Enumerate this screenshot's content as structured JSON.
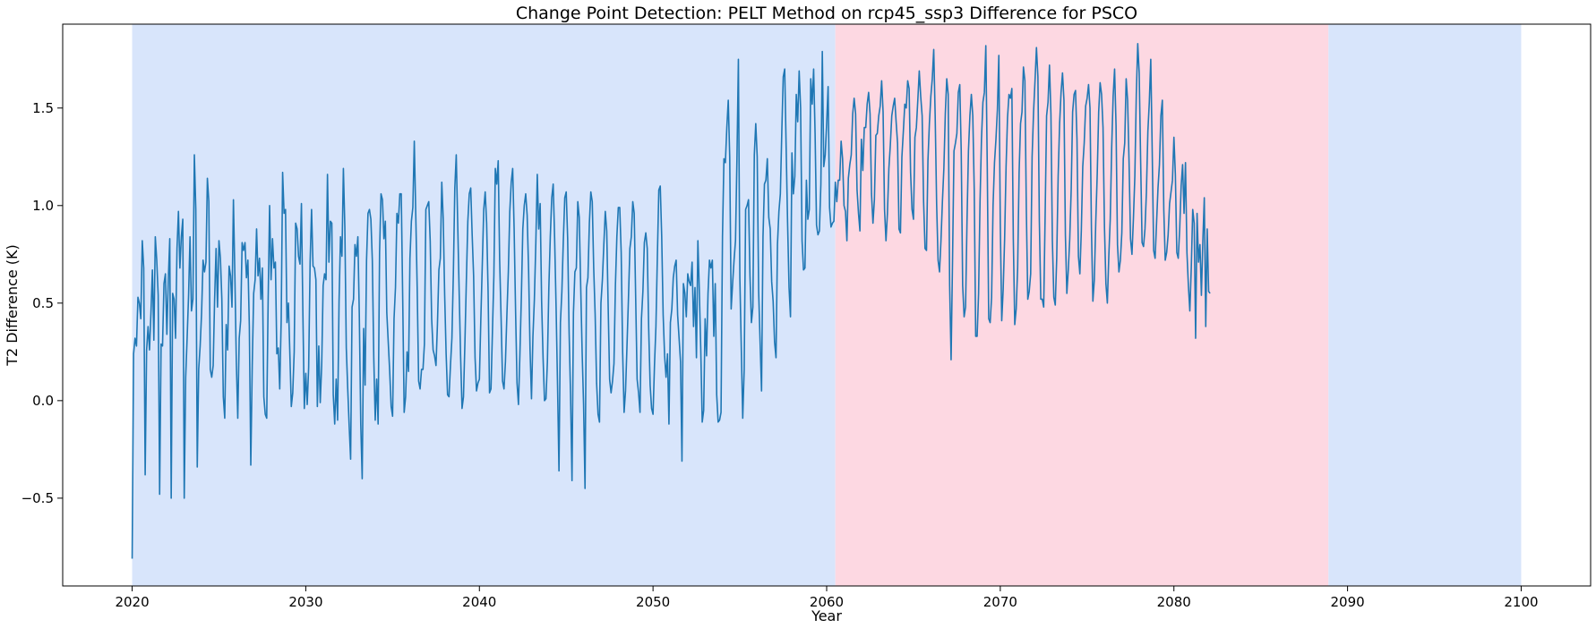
{
  "chart_data": {
    "type": "line",
    "title": "Change Point Detection: PELT Method on rcp45_ssp3 Difference for PSCO",
    "xlabel": "Year",
    "ylabel": "T2 Difference (K)",
    "xlim": [
      2016,
      2104
    ],
    "ylim": [
      -0.95,
      1.93
    ],
    "xticks": [
      2020,
      2030,
      2040,
      2050,
      2060,
      2070,
      2080,
      2090,
      2100
    ],
    "xtick_labels": [
      "2020",
      "2030",
      "2040",
      "2050",
      "2060",
      "2070",
      "2080",
      "2090",
      "2100"
    ],
    "yticks": [
      -0.5,
      0.0,
      0.5,
      1.0,
      1.5
    ],
    "ytick_labels": [
      "−0.5",
      "0.0",
      "0.5",
      "1.0",
      "1.5"
    ],
    "grid": false,
    "line_color": "#1f77b4",
    "regions": [
      {
        "start": 2020.0,
        "end": 2060.5,
        "color": "#d8e5fb"
      },
      {
        "start": 2060.5,
        "end": 2088.9,
        "color": "#fdd8e2"
      },
      {
        "start": 2088.9,
        "end": 2100.0,
        "color": "#d8e5fb"
      }
    ],
    "series": [
      {
        "x_start": 2020.0,
        "x_step": 0.0833333,
        "values": [
          -0.81,
          0.24,
          0.32,
          0.28,
          0.53,
          0.5,
          0.42,
          0.82,
          0.68,
          -0.38,
          0.26,
          0.38,
          0.26,
          0.45,
          0.67,
          0.31,
          0.84,
          0.72,
          0.54,
          -0.48,
          0.29,
          0.28,
          0.6,
          0.65,
          0.34,
          0.62,
          0.83,
          -0.5,
          0.55,
          0.52,
          0.32,
          0.78,
          0.97,
          0.68,
          0.84,
          0.93,
          -0.5,
          0.12,
          0.32,
          0.54,
          0.84,
          0.46,
          0.52,
          1.26,
          0.98,
          -0.34,
          0.16,
          0.28,
          0.45,
          0.72,
          0.66,
          0.71,
          1.14,
          1.02,
          0.16,
          0.12,
          0.18,
          0.52,
          0.78,
          0.48,
          0.82,
          0.73,
          0.52,
          0.02,
          -0.09,
          0.39,
          0.26,
          0.69,
          0.64,
          0.48,
          1.03,
          0.64,
          0.2,
          -0.09,
          0.32,
          0.41,
          0.81,
          0.77,
          0.81,
          0.63,
          0.72,
          0.38,
          -0.33,
          0.18,
          0.55,
          0.62,
          0.88,
          0.64,
          0.73,
          0.52,
          0.68,
          0.02,
          -0.07,
          -0.09,
          0.52,
          1.0,
          0.62,
          0.83,
          0.68,
          0.71,
          0.24,
          0.27,
          0.06,
          0.41,
          1.17,
          0.96,
          0.98,
          0.4,
          0.5,
          0.24,
          -0.03,
          0.04,
          0.25,
          0.91,
          0.88,
          0.74,
          0.7,
          1.01,
          0.45,
          -0.04,
          0.14,
          -0.02,
          0.17,
          0.71,
          0.98,
          0.69,
          0.68,
          0.62,
          -0.03,
          0.28,
          -0.01,
          0.18,
          0.59,
          0.65,
          0.62,
          1.16,
          0.71,
          0.92,
          0.91,
          0.03,
          -0.12,
          0.11,
          -0.1,
          0.51,
          0.84,
          0.74,
          1.19,
          0.89,
          0.27,
          0.06,
          -0.13,
          -0.3,
          0.48,
          0.52,
          0.8,
          0.74,
          0.84,
          0.44,
          -0.12,
          -0.4,
          0.37,
          0.08,
          0.72,
          0.96,
          0.98,
          0.93,
          0.72,
          0.22,
          -0.1,
          0.11,
          -0.12,
          0.76,
          1.06,
          1.03,
          0.83,
          0.92,
          0.45,
          0.3,
          0.15,
          -0.03,
          -0.08,
          0.42,
          0.58,
          0.96,
          0.91,
          1.06,
          1.06,
          0.52,
          -0.06,
          0.02,
          0.25,
          0.15,
          0.73,
          0.92,
          0.99,
          1.33,
          0.96,
          0.58,
          0.1,
          0.06,
          0.16,
          0.16,
          0.29,
          0.98,
          1.0,
          1.02,
          0.82,
          0.42,
          0.26,
          0.23,
          0.18,
          0.39,
          0.67,
          0.73,
          1.12,
          0.93,
          0.54,
          0.24,
          0.03,
          0.02,
          0.18,
          0.32,
          0.65,
          1.09,
          1.26,
          0.91,
          0.56,
          0.23,
          -0.04,
          0.02,
          0.3,
          0.62,
          0.92,
          1.06,
          1.09,
          0.85,
          0.64,
          0.22,
          0.05,
          0.09,
          0.11,
          0.42,
          0.7,
          0.98,
          1.07,
          0.91,
          0.56,
          0.04,
          0.06,
          0.35,
          0.64,
          1.19,
          1.11,
          1.23,
          0.72,
          0.42,
          0.1,
          0.06,
          0.2,
          0.44,
          0.66,
          0.97,
          1.12,
          1.19,
          0.88,
          0.46,
          0.09,
          -0.02,
          0.24,
          0.53,
          0.88,
          1.0,
          1.06,
          0.95,
          0.67,
          0.26,
          0.01,
          0.33,
          0.52,
          0.81,
          1.16,
          0.88,
          1.01,
          0.51,
          0.22,
          0.0,
          0.01,
          0.2,
          0.58,
          0.84,
          1.04,
          1.11,
          0.83,
          0.48,
          0.08,
          -0.36,
          0.4,
          0.56,
          0.82,
          1.04,
          1.07,
          0.83,
          0.35,
          0.03,
          -0.41,
          0.45,
          0.66,
          0.68,
          1.02,
          0.94,
          0.59,
          0.25,
          -0.02,
          -0.45,
          0.58,
          0.63,
          0.91,
          1.07,
          1.02,
          0.68,
          0.44,
          0.09,
          -0.07,
          -0.11,
          0.5,
          0.62,
          0.8,
          0.97,
          0.87,
          0.48,
          0.11,
          0.04,
          0.1,
          0.19,
          0.59,
          0.84,
          0.99,
          0.99,
          0.76,
          0.25,
          -0.06,
          0.05,
          0.28,
          0.52,
          0.78,
          0.84,
          1.02,
          0.96,
          0.53,
          0.11,
          0.04,
          -0.06,
          0.42,
          0.56,
          0.81,
          0.86,
          0.78,
          0.37,
          0.08,
          -0.04,
          -0.07,
          0.18,
          0.38,
          0.74,
          1.08,
          1.1,
          0.84,
          0.44,
          0.23,
          0.12,
          0.24,
          -0.12,
          0.4,
          0.47,
          0.63,
          0.69,
          0.72,
          0.44,
          0.32,
          0.2,
          -0.31,
          0.6,
          0.55,
          0.43,
          0.65,
          0.61,
          0.59,
          0.71,
          0.38,
          0.58,
          0.22,
          0.82,
          0.56,
          0.26,
          -0.11,
          -0.05,
          0.42,
          0.23,
          0.55,
          0.72,
          0.68,
          0.72,
          0.33,
          0.6,
          0.03,
          -0.11,
          -0.1,
          -0.06,
          0.84,
          1.24,
          1.22,
          1.4,
          1.54,
          1.25,
          0.47,
          0.6,
          0.72,
          0.82,
          1.24,
          1.75,
          0.63,
          0.27,
          -0.09,
          0.16,
          0.98,
          1.0,
          1.03,
          0.64,
          0.4,
          0.48,
          1.26,
          1.42,
          1.25,
          0.56,
          0.3,
          0.05,
          0.84,
          1.11,
          1.13,
          1.24,
          0.94,
          0.88,
          0.61,
          0.51,
          0.3,
          0.22,
          0.8,
          0.97,
          1.06,
          1.38,
          1.66,
          1.7,
          1.3,
          0.91,
          0.58,
          0.43,
          1.27,
          1.06,
          1.15,
          1.57,
          1.43,
          1.69,
          1.5,
          0.82,
          0.67,
          0.68,
          1.13,
          0.93,
          0.98,
          1.65,
          1.52,
          1.7,
          1.37,
          0.9,
          0.85,
          0.87,
          1.11,
          1.79,
          1.2,
          1.26,
          1.42,
          1.61,
          0.99,
          0.89,
          0.91,
          0.92,
          1.12,
          1.02,
          1.13,
          1.13,
          1.33,
          1.24,
          1.0,
          0.97,
          0.82,
          1.14,
          1.21,
          1.26,
          1.47,
          1.55,
          1.47,
          1.08,
          0.96,
          0.87,
          1.34,
          1.18,
          1.4,
          1.4,
          1.52,
          1.58,
          1.47,
          1.06,
          0.91,
          1.03,
          1.36,
          1.37,
          1.46,
          1.51,
          1.64,
          1.48,
          0.98,
          0.82,
          0.96,
          1.19,
          1.31,
          1.46,
          1.51,
          1.55,
          1.43,
          1.32,
          0.88,
          0.86,
          1.25,
          1.38,
          1.52,
          1.5,
          1.64,
          1.6,
          1.17,
          0.98,
          0.93,
          1.35,
          1.4,
          1.54,
          1.69,
          1.56,
          1.46,
          1.02,
          0.78,
          0.77,
          1.23,
          1.42,
          1.56,
          1.65,
          1.8,
          1.46,
          1.01,
          0.72,
          0.66,
          0.82,
          1.02,
          1.19,
          1.47,
          1.65,
          1.57,
          0.59,
          0.21,
          0.72,
          1.28,
          1.32,
          1.37,
          1.58,
          1.62,
          1.28,
          0.59,
          0.43,
          0.48,
          0.92,
          1.28,
          1.46,
          1.57,
          1.46,
          1.08,
          0.33,
          0.33,
          0.55,
          1.02,
          1.34,
          1.53,
          1.58,
          1.82,
          1.2,
          0.42,
          0.4,
          0.53,
          1.0,
          1.22,
          1.34,
          1.49,
          1.77,
          0.91,
          0.41,
          0.57,
          0.83,
          1.2,
          1.45,
          1.57,
          1.55,
          1.6,
          0.83,
          0.39,
          0.47,
          0.68,
          1.17,
          1.42,
          1.48,
          1.71,
          1.64,
          0.98,
          0.52,
          0.56,
          0.65,
          1.25,
          1.48,
          1.64,
          1.81,
          1.66,
          0.92,
          0.52,
          0.52,
          0.48,
          0.95,
          1.46,
          1.53,
          1.72,
          1.47,
          0.82,
          0.53,
          0.49,
          0.73,
          1.15,
          1.42,
          1.58,
          1.68,
          1.54,
          0.85,
          0.55,
          0.67,
          0.83,
          1.08,
          1.48,
          1.57,
          1.59,
          1.34,
          0.74,
          0.65,
          0.87,
          1.2,
          1.32,
          1.51,
          1.55,
          1.62,
          1.5,
          0.88,
          0.51,
          0.62,
          0.92,
          1.16,
          1.48,
          1.63,
          1.57,
          1.4,
          0.89,
          0.6,
          0.5,
          0.74,
          0.93,
          1.3,
          1.56,
          1.7,
          1.41,
          0.8,
          0.66,
          0.72,
          0.86,
          1.24,
          1.32,
          1.65,
          1.54,
          1.22,
          0.83,
          0.75,
          0.93,
          1.15,
          1.57,
          1.83,
          1.68,
          1.23,
          0.81,
          0.79,
          0.88,
          1.07,
          1.38,
          1.53,
          1.75,
          1.28,
          0.77,
          0.73,
          0.91,
          1.09,
          1.21,
          1.46,
          1.54,
          0.98,
          0.72,
          0.76,
          0.85,
          1.01,
          1.07,
          1.13,
          1.35,
          1.16,
          0.76,
          0.73,
          0.88,
          1.1,
          1.21,
          0.96,
          1.22,
          0.76,
          0.59,
          0.46,
          0.68,
          0.98,
          0.91,
          0.32,
          0.96,
          0.71,
          0.8,
          0.54,
          0.82,
          1.04,
          0.38,
          0.88,
          0.56,
          0.55
        ]
      }
    ]
  }
}
